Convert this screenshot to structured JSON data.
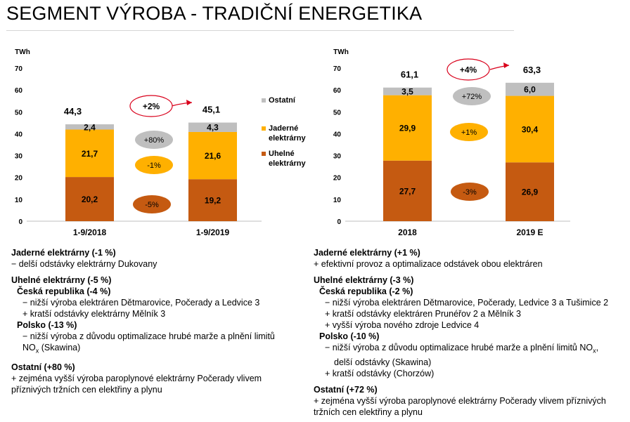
{
  "title": "SEGMENT VÝROBA - TRADIČNÍ ENERGETIKA",
  "colors": {
    "coal": "#c55a11",
    "nuclear": "#ffb000",
    "other": "#bfbfbf",
    "arrow": "#d9001b"
  },
  "chart_data": [
    {
      "type": "bar",
      "stacked": true,
      "ylabel": "TWh",
      "ylim": [
        0,
        70
      ],
      "yticks": [
        0,
        10,
        20,
        30,
        40,
        50,
        60,
        70
      ],
      "grid": false,
      "categories": [
        "1-9/2018",
        "1-9/2019"
      ],
      "series": [
        {
          "name": "Uhelné elektrárny",
          "values": [
            20.2,
            19.2
          ],
          "labels": [
            "20,2",
            "19,2"
          ]
        },
        {
          "name": "Jaderné elektrárny",
          "values": [
            21.7,
            21.6
          ],
          "labels": [
            "21,7",
            "21,6"
          ]
        },
        {
          "name": "Ostatní",
          "values": [
            2.4,
            4.3
          ],
          "labels": [
            "2,4",
            "4,3"
          ]
        }
      ],
      "totals": [
        "44,3",
        "45,1"
      ],
      "change_total": "+2%",
      "changes": {
        "other": "+80%",
        "nuclear": "-1%",
        "coal": "-5%"
      },
      "legend": {
        "placement": "right",
        "items": [
          {
            "lines": [
              "Ostatní"
            ],
            "series": "other"
          },
          {
            "lines": [
              "Jaderné",
              "elektrárny"
            ],
            "series": "nuclear"
          },
          {
            "lines": [
              "Uhelné",
              "elektrárny"
            ],
            "series": "coal"
          }
        ]
      }
    },
    {
      "type": "bar",
      "stacked": true,
      "ylabel": "TWh",
      "ylim": [
        0,
        70
      ],
      "yticks": [
        0,
        10,
        20,
        30,
        40,
        50,
        60,
        70
      ],
      "grid": false,
      "categories": [
        "2018",
        "2019 E"
      ],
      "series": [
        {
          "name": "Uhelné elektrárny",
          "values": [
            27.7,
            26.9
          ],
          "labels": [
            "27,7",
            "26,9"
          ]
        },
        {
          "name": "Jaderné elektrárny",
          "values": [
            29.9,
            30.4
          ],
          "labels": [
            "29,9",
            "30,4"
          ]
        },
        {
          "name": "Ostatní",
          "values": [
            3.5,
            6.0
          ],
          "labels": [
            "3,5",
            "6,0"
          ]
        }
      ],
      "totals": [
        "61,1",
        "63,3"
      ],
      "change_total": "+4%",
      "changes": {
        "other": "+72%",
        "nuclear": "+1%",
        "coal": "-3%"
      }
    }
  ],
  "notes_left": [
    {
      "text": "Jaderné elektrárny (-1 %)",
      "style": "h"
    },
    {
      "text": "− delší odstávky elektrárny Dukovany",
      "style": ""
    },
    {
      "text": "Uhelné elektrárny (-5 %)",
      "style": "h gap"
    },
    {
      "text": "Česká republika (-4 %)",
      "style": "h ind1"
    },
    {
      "text": "− nižší výroba elektráren Dětmarovice, Počerady a Ledvice 3",
      "style": "ind2"
    },
    {
      "text": "+ kratší odstávky elektrárny Mělník 3",
      "style": "ind2"
    },
    {
      "text": "Polsko (-13 %)",
      "style": "h ind1"
    },
    {
      "text": "− nižší výroba z důvodu optimalizace hrubé marže a plnění limitů",
      "style": "ind2"
    },
    {
      "text": "NOx (Skawina)",
      "style": "ind2 subx"
    },
    {
      "text": "Ostatní (+80 %)",
      "style": "h gap"
    },
    {
      "text": "+ zejména vyšší výroba paroplynové elektrárny Počerady vlivem",
      "style": ""
    },
    {
      "text": "příznivých tržních cen elektřiny a plynu",
      "style": ""
    }
  ],
  "notes_right": [
    {
      "text": "Jaderné elektrárny (+1 %)",
      "style": "h"
    },
    {
      "text": "+ efektivní provoz a optimalizace odstávek obou elektráren",
      "style": ""
    },
    {
      "text": "Uhelné elektrárny (-3 %)",
      "style": "h gap"
    },
    {
      "text": "Česká republika (-2 %)",
      "style": "h ind1"
    },
    {
      "text": "− nižší výroba elektráren Dětmarovice, Počerady, Ledvice 3 a Tušimice 2",
      "style": "ind2"
    },
    {
      "text": "+ kratší odstávky elektráren Prunéřov 2 a Mělník 3",
      "style": "ind2"
    },
    {
      "text": "+ vyšší výroba nového zdroje Ledvice 4",
      "style": "ind2"
    },
    {
      "text": "Polsko (-10 %)",
      "style": "h ind1"
    },
    {
      "text": "− nižší výroba z důvodu optimalizace hrubé marže a plnění limitů NOx,",
      "style": "ind2 subx"
    },
    {
      "text": "delší odstávky (Skawina)",
      "style": "ind3"
    },
    {
      "text": "+ kratší odstávky (Chorzów)",
      "style": "ind2"
    },
    {
      "text": "Ostatní (+72 %)",
      "style": "h gap"
    },
    {
      "text": "+ zejména vyšší výroba paroplynové elektrárny Počerady vlivem příznivých",
      "style": ""
    },
    {
      "text": "tržních cen elektřiny a plynu",
      "style": ""
    }
  ]
}
